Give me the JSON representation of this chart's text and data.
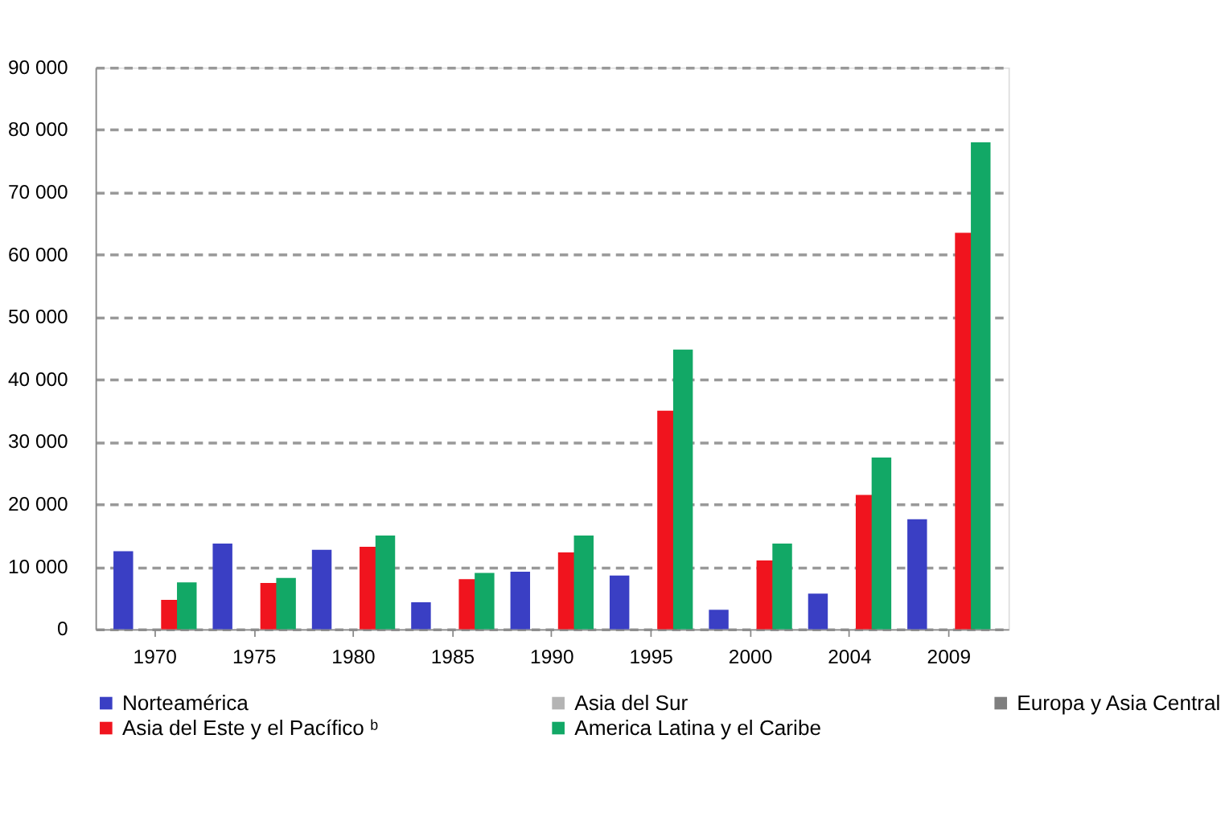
{
  "chart_data": {
    "type": "bar",
    "categories": [
      "1970",
      "1975",
      "1980",
      "1985",
      "1990",
      "1995",
      "2000",
      "2004",
      "2009"
    ],
    "series": [
      {
        "name": "Norteamérica",
        "color": "#3a3fc4",
        "values": [
          12500,
          13700,
          12700,
          4300,
          9200,
          8600,
          3100,
          5700,
          17600
        ]
      },
      {
        "name": "Asia del Sur",
        "color": "#b4b4b4",
        "values": [
          null,
          null,
          null,
          null,
          null,
          null,
          null,
          null,
          null
        ]
      },
      {
        "name": "Europa y Asia Central",
        "color": "#7f7f7f",
        "values": [
          null,
          null,
          null,
          null,
          null,
          null,
          null,
          null,
          null
        ]
      },
      {
        "name": "Asia del Este y el Pacífico ᵇ",
        "color": "#f0141e",
        "values": [
          4700,
          7400,
          13200,
          8000,
          12300,
          35000,
          11000,
          21500,
          63500
        ]
      },
      {
        "name": "America Latina y el Caribe",
        "color": "#12a866",
        "values": [
          7500,
          8200,
          15000,
          9000,
          15000,
          44800,
          13700,
          27500,
          78000
        ]
      }
    ],
    "ylim": [
      0,
      90000
    ],
    "yticks": [
      {
        "value": 0,
        "label": "0"
      },
      {
        "value": 10000,
        "label": "10 000"
      },
      {
        "value": 20000,
        "label": "20 000"
      },
      {
        "value": 30000,
        "label": "30 000"
      },
      {
        "value": 40000,
        "label": "40 000"
      },
      {
        "value": 50000,
        "label": "50 000"
      },
      {
        "value": 60000,
        "label": "60 000"
      },
      {
        "value": 70000,
        "label": "70 000"
      },
      {
        "value": 80000,
        "label": "80 000"
      },
      {
        "value": 90000,
        "label": "90 000"
      }
    ],
    "grid": "y",
    "legend": "bottom"
  }
}
